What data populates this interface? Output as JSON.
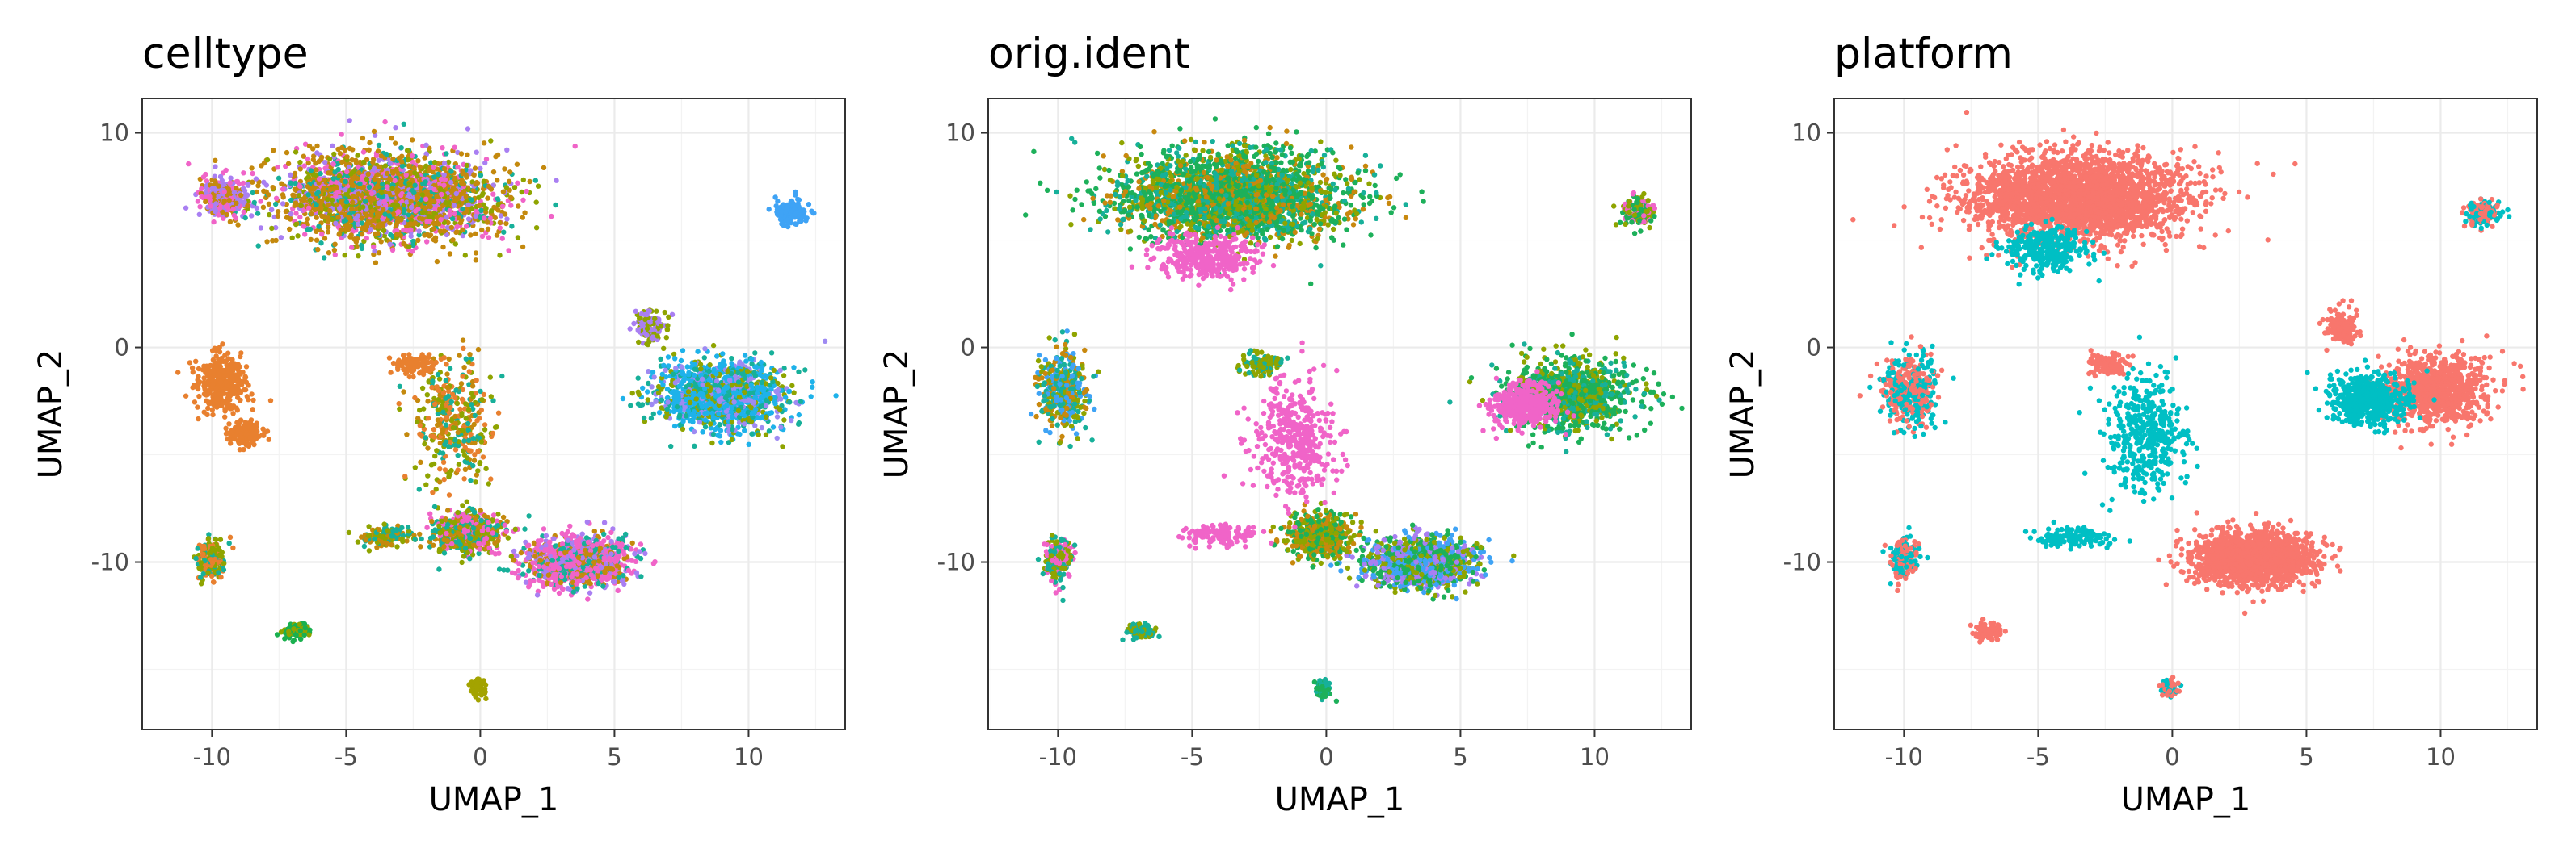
{
  "chart_data": [
    {
      "type": "scatter",
      "title": "celltype",
      "xlabel": "UMAP_1",
      "ylabel": "UMAP_2",
      "xlim": [
        -12.6,
        13.6
      ],
      "ylim": [
        -17.8,
        11.6
      ],
      "xticks": [
        -10,
        -5,
        0,
        5,
        10
      ],
      "yticks": [
        -10,
        0,
        10
      ],
      "grid": true,
      "legend": "none",
      "clusters": [
        {
          "x": -3.5,
          "y": 7.0,
          "sx": 3.4,
          "sy": 1.6,
          "colors": [
            "#c4890d",
            "#c4890d",
            "#c4890d",
            "#f064c8",
            "#17b09a",
            "#a97ff2",
            "#8fa400"
          ],
          "weight": 10
        },
        {
          "x": -9.6,
          "y": 7.0,
          "sx": 0.7,
          "sy": 0.8,
          "colors": [
            "#a97ff2",
            "#f064c8",
            "#c4890d"
          ],
          "weight": 1.2
        },
        {
          "x": 11.6,
          "y": 6.3,
          "sx": 0.5,
          "sy": 0.5,
          "colors": [
            "#3fa3f5"
          ],
          "weight": 0.6
        },
        {
          "x": 9.0,
          "y": -2.2,
          "sx": 1.9,
          "sy": 1.3,
          "colors": [
            "#1eb2ea",
            "#1eb2ea",
            "#9e8af2",
            "#17b09a",
            "#8fa400"
          ],
          "weight": 5
        },
        {
          "x": 6.3,
          "y": 1.0,
          "sx": 0.5,
          "sy": 0.6,
          "colors": [
            "#8fa400",
            "#a97ff2"
          ],
          "weight": 0.5
        },
        {
          "x": -9.7,
          "y": -1.6,
          "sx": 0.8,
          "sy": 1.1,
          "colors": [
            "#e8802f"
          ],
          "weight": 1.2
        },
        {
          "x": -8.8,
          "y": -4.0,
          "sx": 0.5,
          "sy": 0.5,
          "colors": [
            "#e8802f"
          ],
          "weight": 0.5
        },
        {
          "x": -10.0,
          "y": -9.8,
          "sx": 0.4,
          "sy": 0.8,
          "colors": [
            "#17b09a",
            "#8fa400",
            "#e8802f"
          ],
          "weight": 0.7
        },
        {
          "x": -6.9,
          "y": -13.2,
          "sx": 0.4,
          "sy": 0.3,
          "colors": [
            "#1ab04f",
            "#1ab04f",
            "#8fa400"
          ],
          "weight": 0.4
        },
        {
          "x": -0.1,
          "y": -15.9,
          "sx": 0.25,
          "sy": 0.35,
          "colors": [
            "#a3a300"
          ],
          "weight": 0.25
        },
        {
          "x": 3.5,
          "y": -10.0,
          "sx": 1.5,
          "sy": 0.9,
          "colors": [
            "#f064c8",
            "#f064c8",
            "#c4890d",
            "#17b09a",
            "#a97ff2"
          ],
          "weight": 5
        },
        {
          "x": -0.5,
          "y": -8.6,
          "sx": 1.0,
          "sy": 0.8,
          "colors": [
            "#c4890d",
            "#17b09a",
            "#f064c8",
            "#8fa400"
          ],
          "weight": 2
        },
        {
          "x": -1.0,
          "y": -3.5,
          "sx": 1.2,
          "sy": 2.2,
          "colors": [
            "#e8802f",
            "#17b09a",
            "#8fa400",
            "#c4890d"
          ],
          "weight": 1.4
        },
        {
          "x": -3.5,
          "y": -8.8,
          "sx": 1.0,
          "sy": 0.4,
          "colors": [
            "#c4890d",
            "#17b09a",
            "#8fa400"
          ],
          "weight": 0.5
        },
        {
          "x": -2.4,
          "y": -0.8,
          "sx": 0.6,
          "sy": 0.4,
          "colors": [
            "#e8802f"
          ],
          "weight": 0.4
        }
      ]
    },
    {
      "type": "scatter",
      "title": "orig.ident",
      "xlabel": "UMAP_1",
      "ylabel": "UMAP_2",
      "xlim": [
        -12.6,
        13.6
      ],
      "ylim": [
        -17.8,
        11.6
      ],
      "xticks": [
        -10,
        -5,
        0,
        5,
        10
      ],
      "yticks": [
        -10,
        0,
        10
      ],
      "grid": true,
      "legend": "none",
      "clusters": [
        {
          "x": -3.5,
          "y": 7.0,
          "sx": 3.4,
          "sy": 1.6,
          "colors": [
            "#1db05a",
            "#c8880e",
            "#1db05a",
            "#8fa400",
            "#17b09a"
          ],
          "weight": 10
        },
        {
          "x": -4.5,
          "y": 4.2,
          "sx": 1.5,
          "sy": 0.8,
          "colors": [
            "#f064c8"
          ],
          "weight": 1.4
        },
        {
          "x": 11.6,
          "y": 6.3,
          "sx": 0.5,
          "sy": 0.5,
          "colors": [
            "#f064c8",
            "#1db05a",
            "#8fa400"
          ],
          "weight": 0.6
        },
        {
          "x": 9.0,
          "y": -2.2,
          "sx": 1.9,
          "sy": 1.3,
          "colors": [
            "#1db05a",
            "#8fa400",
            "#1db05a",
            "#17b09a"
          ],
          "weight": 4
        },
        {
          "x": 7.4,
          "y": -2.7,
          "sx": 1.0,
          "sy": 0.8,
          "colors": [
            "#f064c8"
          ],
          "weight": 1.5
        },
        {
          "x": -9.8,
          "y": -2.0,
          "sx": 0.8,
          "sy": 1.4,
          "colors": [
            "#17b09a",
            "#8fa400",
            "#c8880e",
            "#3fa3f5"
          ],
          "weight": 1.6
        },
        {
          "x": -10.0,
          "y": -9.8,
          "sx": 0.4,
          "sy": 0.8,
          "colors": [
            "#f064c8",
            "#17b09a",
            "#8fa400"
          ],
          "weight": 0.7
        },
        {
          "x": -6.9,
          "y": -13.2,
          "sx": 0.4,
          "sy": 0.3,
          "colors": [
            "#17b09a",
            "#8fa400"
          ],
          "weight": 0.4
        },
        {
          "x": -0.1,
          "y": -15.9,
          "sx": 0.25,
          "sy": 0.35,
          "colors": [
            "#1db05a",
            "#17b09a"
          ],
          "weight": 0.25
        },
        {
          "x": 3.5,
          "y": -10.0,
          "sx": 1.6,
          "sy": 0.9,
          "colors": [
            "#a97ff2",
            "#3fa3f5",
            "#8fa400",
            "#1db05a"
          ],
          "weight": 5
        },
        {
          "x": -0.3,
          "y": -8.8,
          "sx": 1.0,
          "sy": 0.8,
          "colors": [
            "#8fa400",
            "#1db05a",
            "#c8880e"
          ],
          "weight": 2
        },
        {
          "x": -1.2,
          "y": -4.2,
          "sx": 1.2,
          "sy": 2.4,
          "colors": [
            "#f064c8"
          ],
          "weight": 1.6
        },
        {
          "x": -3.8,
          "y": -8.8,
          "sx": 1.0,
          "sy": 0.4,
          "colors": [
            "#f064c8"
          ],
          "weight": 0.5
        },
        {
          "x": -2.4,
          "y": -0.8,
          "sx": 0.6,
          "sy": 0.4,
          "colors": [
            "#17b09a",
            "#8fa400"
          ],
          "weight": 0.4
        }
      ]
    },
    {
      "type": "scatter",
      "title": "platform",
      "xlabel": "UMAP_1",
      "ylabel": "UMAP_2",
      "xlim": [
        -12.6,
        13.6
      ],
      "ylim": [
        -17.8,
        11.6
      ],
      "xticks": [
        -10,
        -5,
        0,
        5,
        10
      ],
      "yticks": [
        -10,
        0,
        10
      ],
      "grid": true,
      "legend": "none",
      "clusters": [
        {
          "x": -3.5,
          "y": 7.0,
          "sx": 3.4,
          "sy": 1.6,
          "colors": [
            "#f8766d"
          ],
          "weight": 10
        },
        {
          "x": -4.8,
          "y": 4.6,
          "sx": 1.3,
          "sy": 0.8,
          "colors": [
            "#00bfc4"
          ],
          "weight": 1.2
        },
        {
          "x": 11.6,
          "y": 6.3,
          "sx": 0.5,
          "sy": 0.5,
          "colors": [
            "#f8766d",
            "#00bfc4"
          ],
          "weight": 0.6
        },
        {
          "x": 9.8,
          "y": -2.0,
          "sx": 1.6,
          "sy": 1.3,
          "colors": [
            "#f8766d"
          ],
          "weight": 3.5
        },
        {
          "x": 7.3,
          "y": -2.4,
          "sx": 1.1,
          "sy": 0.9,
          "colors": [
            "#00bfc4"
          ],
          "weight": 2
        },
        {
          "x": 6.3,
          "y": 1.0,
          "sx": 0.5,
          "sy": 0.6,
          "colors": [
            "#f8766d"
          ],
          "weight": 0.5
        },
        {
          "x": -9.8,
          "y": -2.0,
          "sx": 0.8,
          "sy": 1.4,
          "colors": [
            "#f8766d",
            "#00bfc4"
          ],
          "weight": 1.6
        },
        {
          "x": -10.0,
          "y": -9.8,
          "sx": 0.4,
          "sy": 0.8,
          "colors": [
            "#00bfc4",
            "#f8766d"
          ],
          "weight": 0.7
        },
        {
          "x": -6.9,
          "y": -13.2,
          "sx": 0.4,
          "sy": 0.3,
          "colors": [
            "#f8766d"
          ],
          "weight": 0.4
        },
        {
          "x": -0.1,
          "y": -15.9,
          "sx": 0.25,
          "sy": 0.35,
          "colors": [
            "#f8766d",
            "#00bfc4"
          ],
          "weight": 0.25
        },
        {
          "x": 3.0,
          "y": -9.8,
          "sx": 1.8,
          "sy": 1.0,
          "colors": [
            "#f8766d"
          ],
          "weight": 6
        },
        {
          "x": -1.0,
          "y": -4.0,
          "sx": 1.2,
          "sy": 2.4,
          "colors": [
            "#00bfc4"
          ],
          "weight": 1.6
        },
        {
          "x": -3.6,
          "y": -8.8,
          "sx": 1.0,
          "sy": 0.4,
          "colors": [
            "#00bfc4"
          ],
          "weight": 0.5
        },
        {
          "x": -2.4,
          "y": -0.8,
          "sx": 0.6,
          "sy": 0.4,
          "colors": [
            "#f8766d"
          ],
          "weight": 0.4
        }
      ]
    }
  ]
}
